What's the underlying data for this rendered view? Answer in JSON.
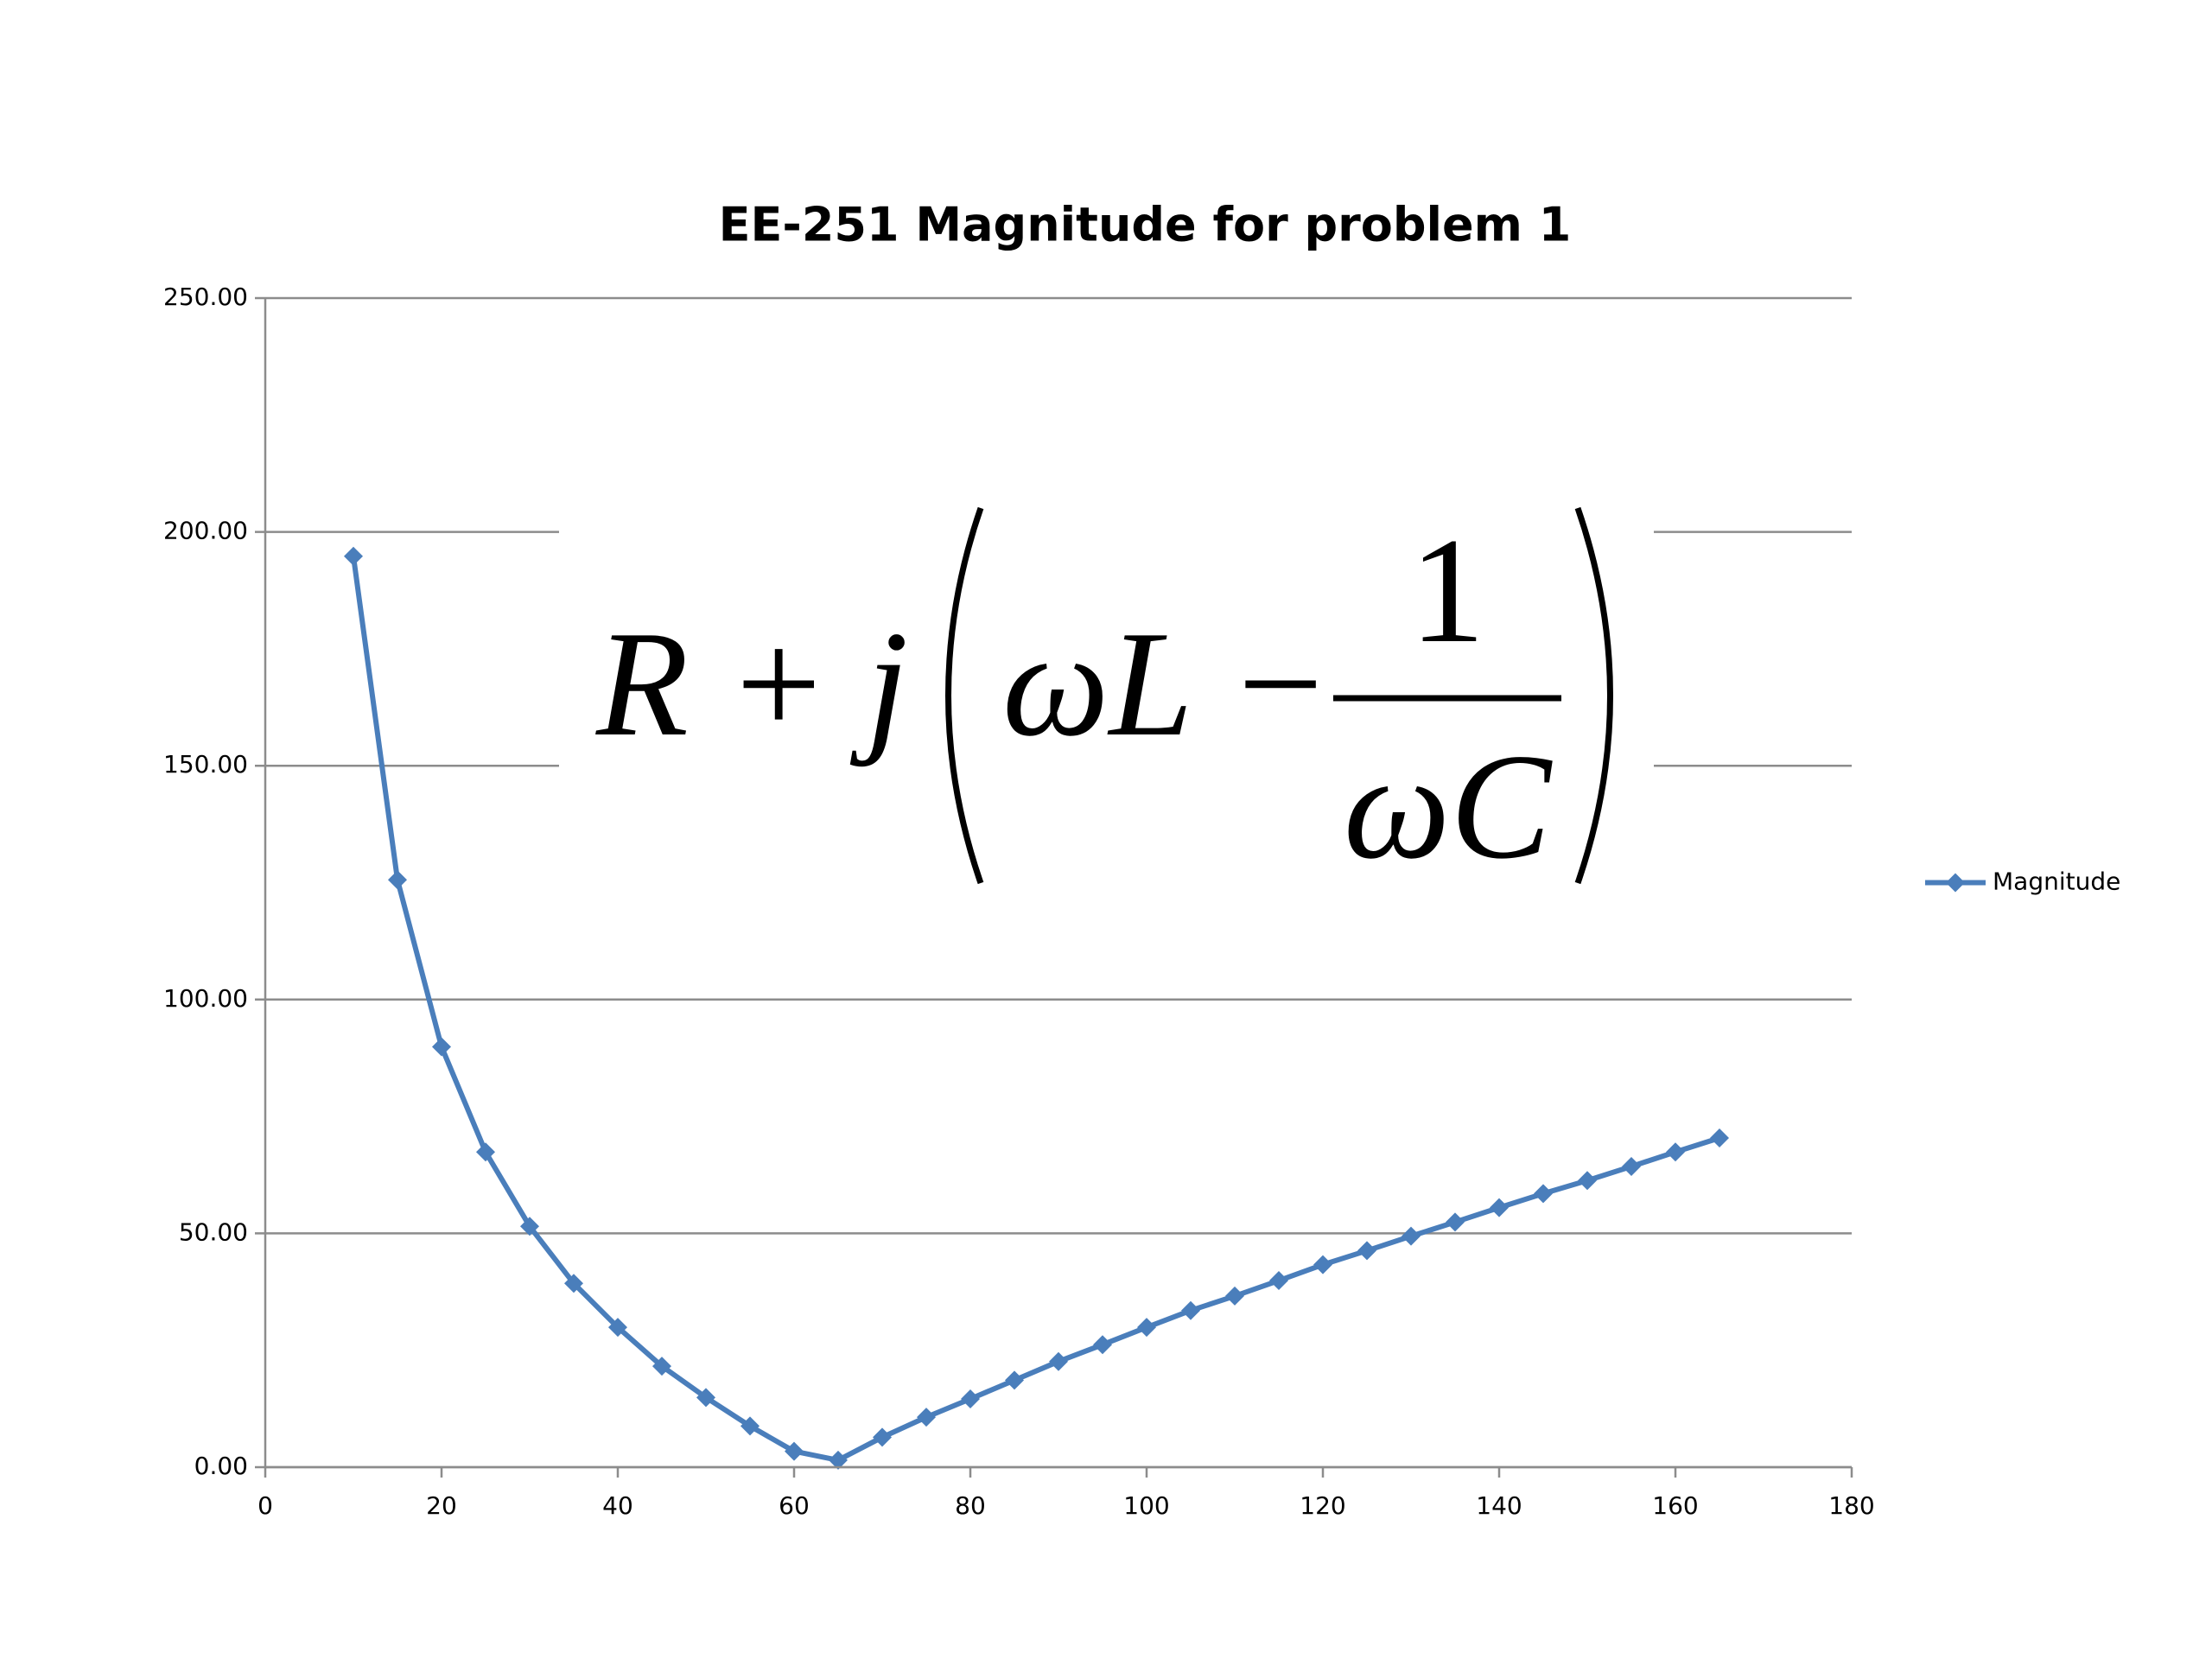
{
  "chart_data": {
    "type": "line",
    "title": "EE-251 Magnitude for problem 1",
    "annotation": {
      "lhs": "R + j",
      "term": "ωL −",
      "numerator": "1",
      "denominator": "ωC"
    },
    "x": [
      10,
      15,
      20,
      25,
      30,
      35,
      40,
      45,
      50,
      55,
      60,
      65,
      70,
      75,
      80,
      85,
      90,
      95,
      100,
      105,
      110,
      115,
      120,
      125,
      130,
      135,
      140,
      145,
      150,
      155,
      160,
      165
    ],
    "series": [
      {
        "name": "Magnitude",
        "color": "#4a7ebb",
        "values": [
          194.8,
          125.6,
          89.9,
          67.4,
          51.5,
          39.3,
          29.9,
          21.6,
          14.9,
          8.8,
          3.4,
          1.5,
          6.4,
          10.7,
          14.6,
          18.6,
          22.6,
          26.2,
          29.9,
          33.5,
          36.6,
          39.9,
          43.3,
          46.3,
          49.4,
          52.4,
          55.5,
          58.5,
          61.3,
          64.3,
          67.4,
          70.4
        ]
      }
    ],
    "xlim": [
      0,
      180
    ],
    "xticks": [
      0,
      20,
      40,
      60,
      80,
      100,
      120,
      140,
      160,
      180
    ],
    "ylim": [
      0,
      250
    ],
    "yticks": [
      {
        "value": 0,
        "label": "0.00"
      },
      {
        "value": 50,
        "label": "50.00"
      },
      {
        "value": 100,
        "label": "100.00"
      },
      {
        "value": 150,
        "label": "150.00"
      },
      {
        "value": 200,
        "label": "200.00"
      },
      {
        "value": 250,
        "label": "250.00"
      }
    ],
    "grid": true,
    "legend": "right"
  }
}
